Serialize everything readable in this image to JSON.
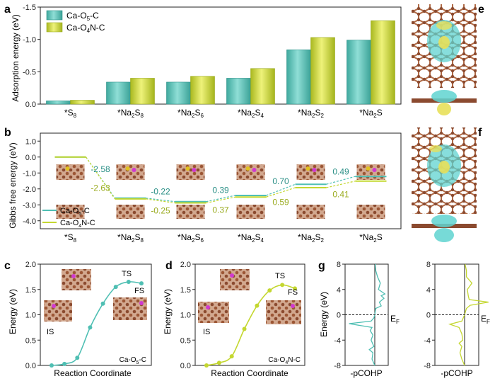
{
  "colors": {
    "teal": "#4fbfb3",
    "yellow": "#c4d730",
    "teal_dark": "#2a8f86",
    "yellow_dark": "#9aab1f",
    "atom_brown": "#8b4a2f",
    "iso_cyan": "#5fd3d0",
    "iso_yellow": "#e8e05a"
  },
  "panel_labels": {
    "a": "a",
    "b": "b",
    "c": "c",
    "d": "d",
    "e": "e",
    "f": "f",
    "g": "g"
  },
  "chart_data": [
    {
      "id": "a",
      "type": "bar",
      "ylabel": "Adsorption energy  (eV)",
      "ylim": [
        0,
        -1.5
      ],
      "yticks": [
        "-1.5",
        "-1.0",
        "-0.5",
        "0.0"
      ],
      "categories_label": [
        "*S",
        "*Na",
        "*Na",
        "*Na",
        "*Na",
        "*Na"
      ],
      "categories_sub": [
        "8",
        "2",
        "2",
        "2",
        "2",
        "2"
      ],
      "categories_tail": [
        "",
        "S",
        "S",
        "S",
        "S",
        "S"
      ],
      "categories_sub2": [
        "",
        "8",
        "6",
        "4",
        "2",
        ""
      ],
      "series": [
        {
          "name": "Ca-O",
          "sub": "5",
          "tail": "-C",
          "values": [
            -0.05,
            -0.34,
            -0.34,
            -0.4,
            -0.84,
            -0.99
          ]
        },
        {
          "name": "Ca-O",
          "sub": "4",
          "tail": "N-C",
          "values": [
            -0.06,
            -0.4,
            -0.43,
            -0.55,
            -1.03,
            -1.29
          ]
        }
      ]
    },
    {
      "id": "b",
      "type": "line",
      "ylabel": "Gibbs free energy  (eV)",
      "ylim": [
        -4.5,
        1.5
      ],
      "yticks": [
        "1.0",
        "0.0",
        "-1.0",
        "-2.0",
        "-3.0",
        "-4.0"
      ],
      "series": [
        {
          "name": "Ca-O",
          "sub": "5",
          "tail": "-C",
          "values": [
            0.0,
            -2.58,
            -2.8,
            -2.41,
            -1.71,
            -1.22
          ]
        },
        {
          "name": "Ca-O",
          "sub": "4",
          "tail": "N-C",
          "values": [
            0.0,
            -2.63,
            -2.88,
            -2.51,
            -1.92,
            -1.51
          ]
        }
      ],
      "step_labels_teal": [
        "-2.58",
        "-0.22",
        "0.39",
        "0.70",
        "0.49"
      ],
      "step_labels_yellow": [
        "-2.63",
        "-0.25",
        "0.37",
        "0.59",
        "0.41"
      ]
    },
    {
      "id": "c",
      "type": "line",
      "ylabel": "Energy  (eV)",
      "xlabel": "Reaction Coordinate",
      "ylim": [
        0,
        2.0
      ],
      "yticks": [
        "0.0",
        "0.5",
        "1.0",
        "1.5",
        "2.0"
      ],
      "values": [
        0.0,
        0.03,
        0.15,
        0.75,
        1.22,
        1.55,
        1.65,
        1.62
      ],
      "annotations": {
        "is": "IS",
        "ts": "TS",
        "fs": "FS"
      },
      "system": {
        "name": "Ca-O",
        "sub": "5",
        "tail": "-C"
      }
    },
    {
      "id": "d",
      "type": "line",
      "ylabel": "Energy  (eV)",
      "xlabel": "Reaction Coordinate",
      "ylim": [
        0,
        2.0
      ],
      "yticks": [
        "0.0",
        "0.5",
        "1.0",
        "1.5",
        "2.0"
      ],
      "values": [
        0.0,
        0.05,
        0.18,
        0.72,
        1.18,
        1.48,
        1.59,
        1.52
      ],
      "annotations": {
        "is": "IS",
        "ts": "TS",
        "fs": "FS"
      },
      "system": {
        "name": "Ca-O",
        "sub": "4",
        "tail": "N-C"
      }
    },
    {
      "id": "g",
      "type": "line",
      "ylabel": "Energy  (eV)",
      "ylim": [
        -8,
        8
      ],
      "yticks": [
        "8",
        "4",
        "0",
        "-4",
        "-8"
      ],
      "xlabel_left": "-pCOHP",
      "xlabel_right": "-pCOHP",
      "fermi_label": "E",
      "fermi_sub": "F",
      "curve_teal": [
        [
          -8,
          0.0
        ],
        [
          -7,
          0.3
        ],
        [
          -6,
          0.2
        ],
        [
          -5.5,
          0.6
        ],
        [
          -5,
          0.1
        ],
        [
          -4,
          0.4
        ],
        [
          -3.2,
          0.2
        ],
        [
          -2.5,
          0.5
        ],
        [
          -2,
          0.3
        ],
        [
          -1.4,
          2.8
        ],
        [
          -1,
          0.4
        ],
        [
          -0.5,
          0.1
        ],
        [
          0,
          0.0
        ],
        [
          1,
          -0.1
        ],
        [
          1.4,
          -0.7
        ],
        [
          2,
          -0.5
        ],
        [
          2.6,
          -1.0
        ],
        [
          3,
          -0.7
        ],
        [
          3.3,
          -1.1
        ],
        [
          4,
          -0.4
        ],
        [
          5,
          -0.6
        ],
        [
          6,
          -0.3
        ],
        [
          7,
          -0.1
        ],
        [
          8,
          -0.05
        ]
      ],
      "curve_yellow": [
        [
          -8,
          0.0
        ],
        [
          -7,
          0.3
        ],
        [
          -6,
          0.5
        ],
        [
          -5,
          0.3
        ],
        [
          -4.5,
          0.6
        ],
        [
          -4,
          0.2
        ],
        [
          -3,
          0.3
        ],
        [
          -2,
          0.6
        ],
        [
          -1.5,
          1.6
        ],
        [
          -1,
          0.3
        ],
        [
          0,
          0.0
        ],
        [
          1,
          -0.2
        ],
        [
          1.5,
          -0.6
        ],
        [
          2,
          -2.6
        ],
        [
          2.4,
          -0.5
        ],
        [
          3,
          -0.4
        ],
        [
          4,
          -0.3
        ],
        [
          5,
          -0.8
        ],
        [
          6,
          -0.2
        ],
        [
          7,
          -0.2
        ],
        [
          8,
          -0.05
        ]
      ]
    }
  ]
}
